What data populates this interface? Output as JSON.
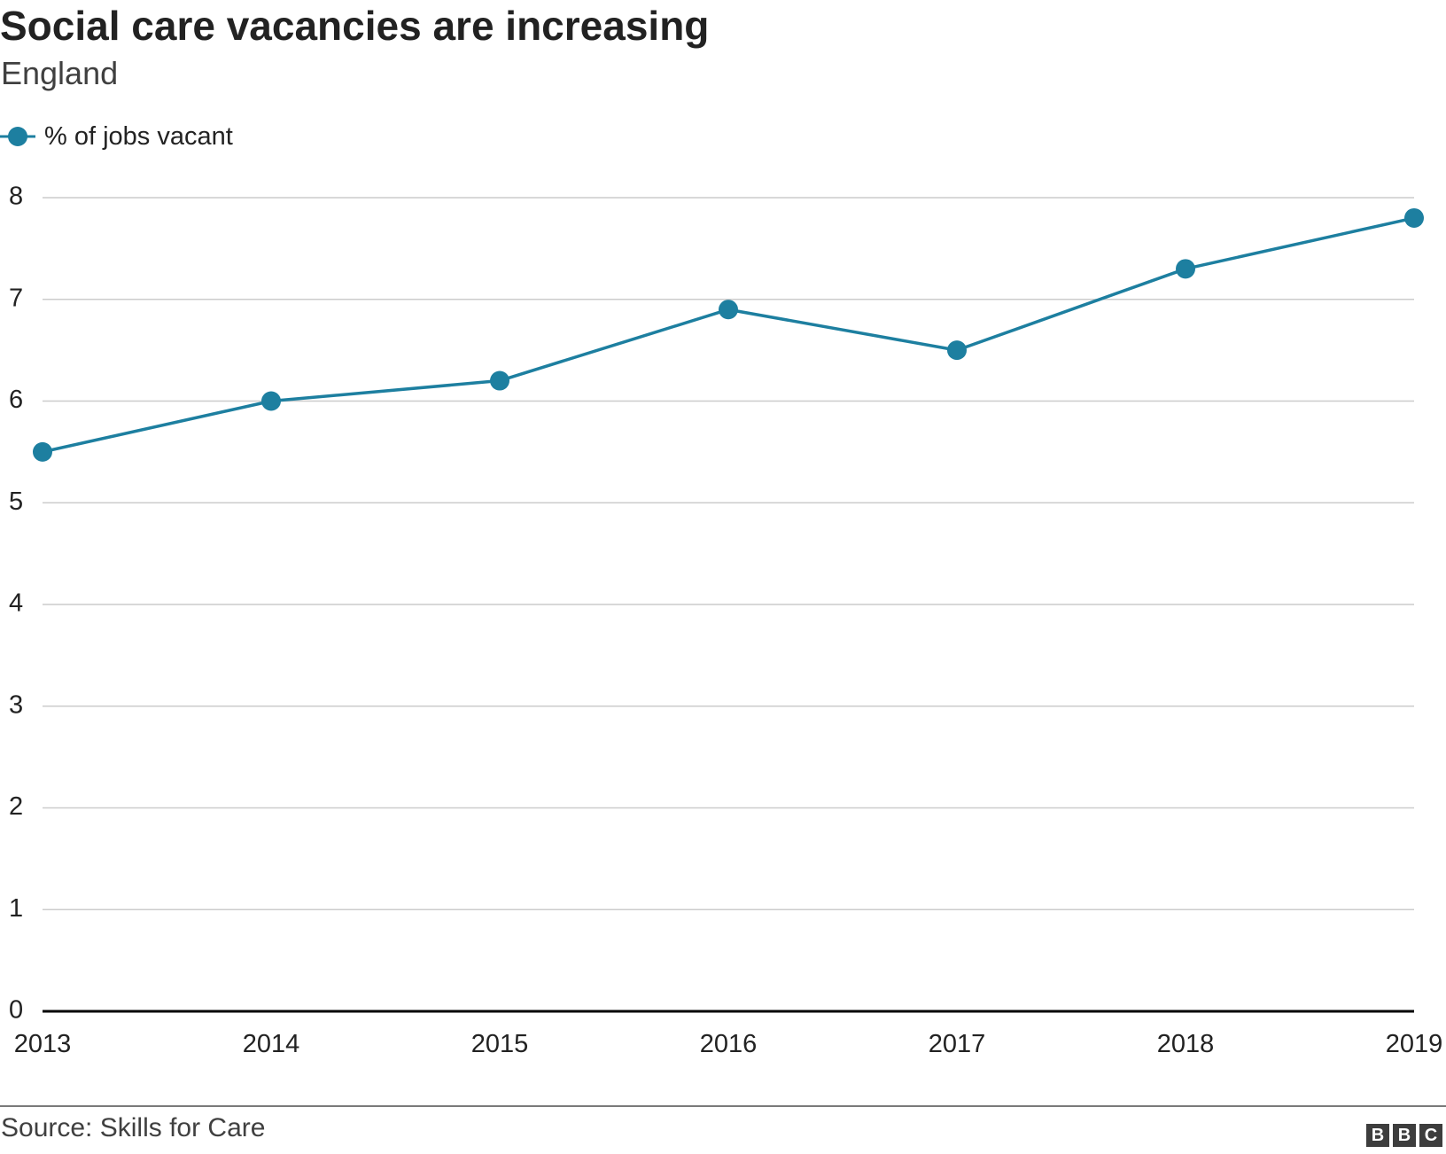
{
  "header": {
    "title": "Social care vacancies are increasing",
    "subtitle": "England"
  },
  "legend": {
    "label": "% of jobs vacant"
  },
  "footer": {
    "source": "Source: Skills for Care",
    "logo_letters": [
      "B",
      "B",
      "C"
    ]
  },
  "colors": {
    "series": "#1d7fa0",
    "grid": "#cccccc",
    "baseline": "#000000"
  },
  "chart_data": {
    "type": "line",
    "title": "Social care vacancies are increasing",
    "subtitle": "England",
    "xlabel": "",
    "ylabel": "",
    "x": [
      "2013",
      "2014",
      "2015",
      "2016",
      "2017",
      "2018",
      "2019"
    ],
    "series": [
      {
        "name": "% of jobs vacant",
        "values": [
          5.5,
          6.0,
          6.2,
          6.9,
          6.5,
          7.3,
          7.8
        ]
      }
    ],
    "ylim": [
      0,
      8
    ],
    "yticks": [
      "0",
      "1",
      "2",
      "3",
      "4",
      "5",
      "6",
      "7",
      "8"
    ],
    "grid": true,
    "markers": true,
    "legend_position": "top-left"
  }
}
